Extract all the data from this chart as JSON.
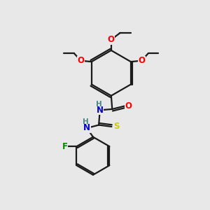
{
  "background_color": "#e8e8e8",
  "bond_color": "#1a1a1a",
  "atom_colors": {
    "O": "#ff0000",
    "N": "#0000cc",
    "S": "#cccc00",
    "F": "#008800",
    "H": "#4a8888",
    "C": "#1a1a1a"
  },
  "figsize": [
    3.0,
    3.0
  ],
  "dpi": 100
}
